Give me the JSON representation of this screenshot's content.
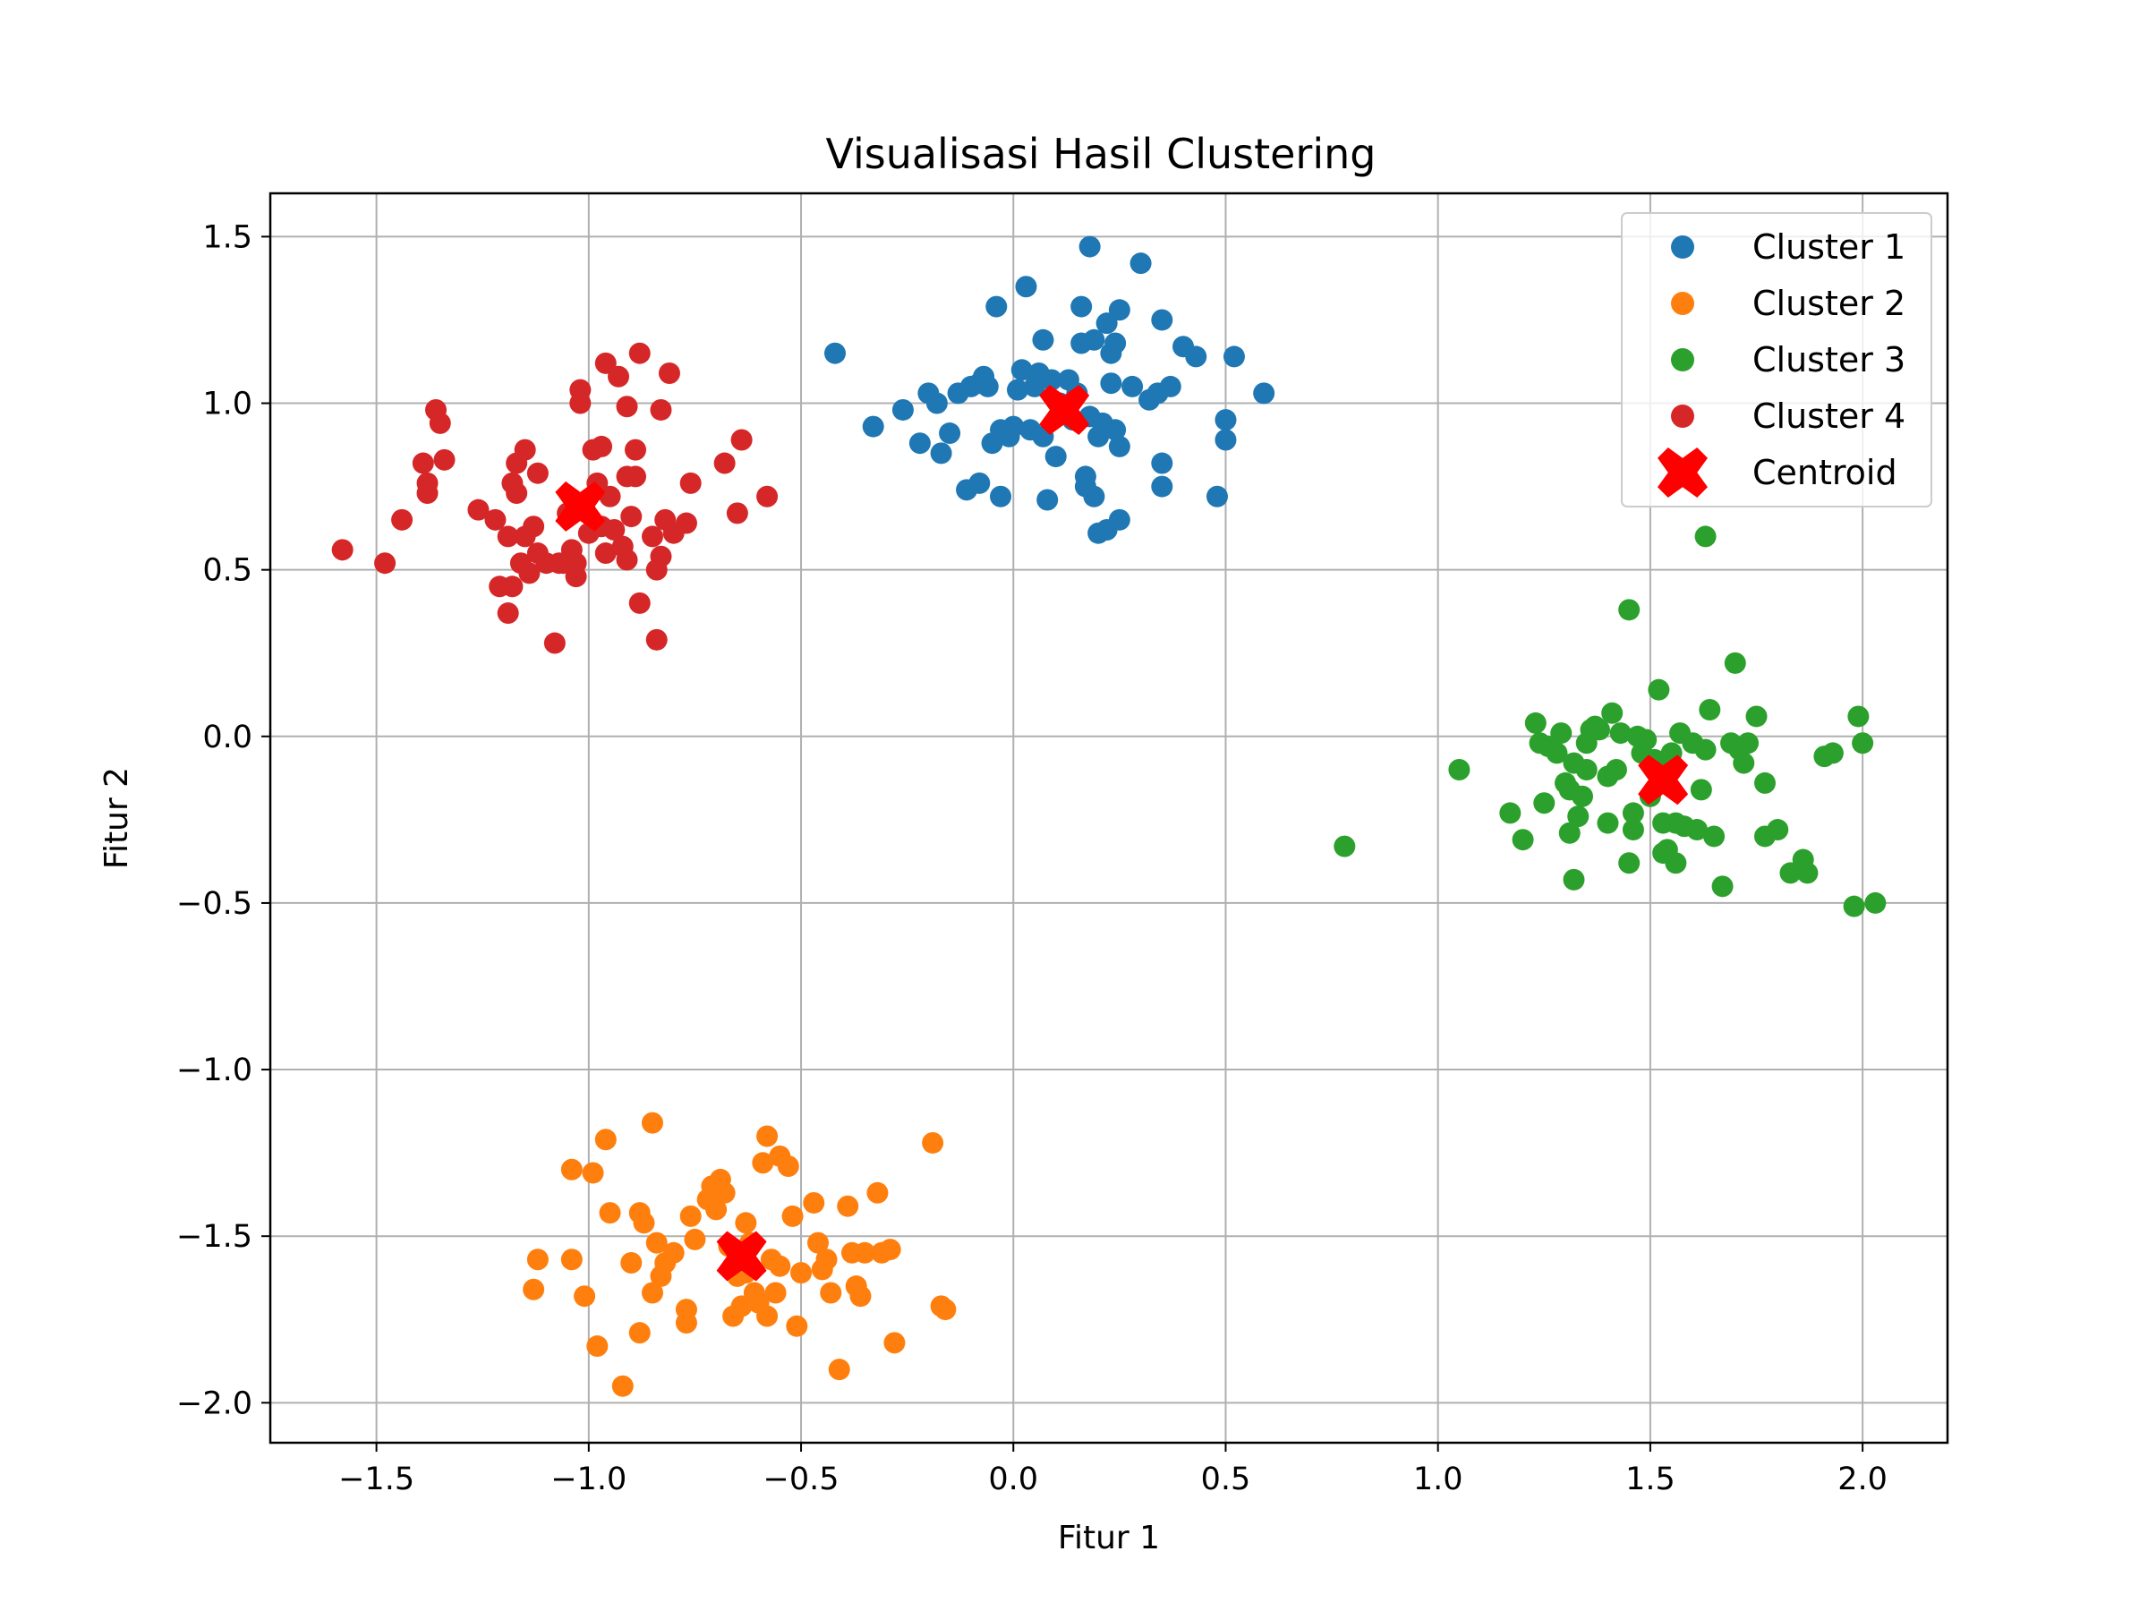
{
  "chart_data": {
    "type": "scatter",
    "title": "Visualisasi Hasil Clustering",
    "xlabel": "Fitur 1",
    "ylabel": "Fitur 2",
    "xlim": [
      -1.75,
      2.2
    ],
    "ylim": [
      -2.12,
      1.63
    ],
    "x_ticks": [
      -1.5,
      -1.0,
      -0.5,
      0.0,
      0.5,
      1.0,
      1.5,
      2.0
    ],
    "x_tick_labels": [
      "−1.5",
      "−1.0",
      "−0.5",
      "0.0",
      "0.5",
      "1.0",
      "1.5",
      "2.0"
    ],
    "y_ticks": [
      1.5,
      1.0,
      0.5,
      0.0,
      -0.5,
      -1.0,
      -1.5,
      -2.0
    ],
    "y_tick_labels": [
      "1.5",
      "1.0",
      "0.5",
      "0.0",
      "−0.5",
      "−1.0",
      "−1.5",
      "−2.0"
    ],
    "grid": true,
    "legend_position": "top-right",
    "series": [
      {
        "name": "Cluster 1",
        "color": "#1f77b4",
        "points": [
          [
            -0.42,
            1.15
          ],
          [
            -0.33,
            0.93
          ],
          [
            -0.26,
            0.98
          ],
          [
            -0.22,
            0.88
          ],
          [
            -0.2,
            1.03
          ],
          [
            -0.18,
            1.0
          ],
          [
            -0.17,
            0.85
          ],
          [
            -0.15,
            0.91
          ],
          [
            -0.13,
            1.03
          ],
          [
            -0.11,
            0.74
          ],
          [
            -0.1,
            1.05
          ],
          [
            -0.08,
            1.06
          ],
          [
            -0.08,
            0.76
          ],
          [
            -0.07,
            1.08
          ],
          [
            -0.06,
            1.05
          ],
          [
            -0.05,
            0.88
          ],
          [
            -0.04,
            1.29
          ],
          [
            -0.03,
            0.72
          ],
          [
            -0.03,
            0.92
          ],
          [
            -0.01,
            0.9
          ],
          [
            0.0,
            0.93
          ],
          [
            0.01,
            1.04
          ],
          [
            0.02,
            1.1
          ],
          [
            0.03,
            1.35
          ],
          [
            0.04,
            0.92
          ],
          [
            0.05,
            1.05
          ],
          [
            0.06,
            1.09
          ],
          [
            0.07,
            0.9
          ],
          [
            0.07,
            1.19
          ],
          [
            0.08,
            0.71
          ],
          [
            0.09,
            1.07
          ],
          [
            0.1,
            0.84
          ],
          [
            0.11,
            1.0
          ],
          [
            0.12,
            0.97
          ],
          [
            0.13,
            1.07
          ],
          [
            0.14,
            0.95
          ],
          [
            0.15,
            1.03
          ],
          [
            0.16,
            1.18
          ],
          [
            0.16,
            1.29
          ],
          [
            0.17,
            0.78
          ],
          [
            0.17,
            0.75
          ],
          [
            0.18,
            1.47
          ],
          [
            0.18,
            0.96
          ],
          [
            0.19,
            1.19
          ],
          [
            0.19,
            0.72
          ],
          [
            0.2,
            0.9
          ],
          [
            0.2,
            0.61
          ],
          [
            0.21,
            0.94
          ],
          [
            0.22,
            0.62
          ],
          [
            0.22,
            1.24
          ],
          [
            0.23,
            1.15
          ],
          [
            0.23,
            1.06
          ],
          [
            0.24,
            1.18
          ],
          [
            0.24,
            0.92
          ],
          [
            0.25,
            0.87
          ],
          [
            0.25,
            0.65
          ],
          [
            0.25,
            1.28
          ],
          [
            0.28,
            1.05
          ],
          [
            0.3,
            1.42
          ],
          [
            0.32,
            1.01
          ],
          [
            0.34,
            1.03
          ],
          [
            0.35,
            1.25
          ],
          [
            0.35,
            0.82
          ],
          [
            0.35,
            0.75
          ],
          [
            0.37,
            1.05
          ],
          [
            0.4,
            1.17
          ],
          [
            0.43,
            1.14
          ],
          [
            0.48,
            0.72
          ],
          [
            0.5,
            0.95
          ],
          [
            0.5,
            0.89
          ],
          [
            0.52,
            1.14
          ],
          [
            0.59,
            1.03
          ]
        ]
      },
      {
        "name": "Cluster 2",
        "color": "#ff7f0e",
        "points": [
          [
            -1.13,
            -1.66
          ],
          [
            -1.12,
            -1.57
          ],
          [
            -1.04,
            -1.3
          ],
          [
            -1.04,
            -1.57
          ],
          [
            -1.01,
            -1.68
          ],
          [
            -0.99,
            -1.31
          ],
          [
            -0.98,
            -1.83
          ],
          [
            -0.96,
            -1.21
          ],
          [
            -0.95,
            -1.43
          ],
          [
            -0.92,
            -1.95
          ],
          [
            -0.9,
            -1.58
          ],
          [
            -0.88,
            -1.79
          ],
          [
            -0.88,
            -1.43
          ],
          [
            -0.87,
            -1.46
          ],
          [
            -0.85,
            -1.16
          ],
          [
            -0.85,
            -1.67
          ],
          [
            -0.84,
            -1.52
          ],
          [
            -0.83,
            -1.62
          ],
          [
            -0.82,
            -1.58
          ],
          [
            -0.8,
            -1.55
          ],
          [
            -0.77,
            -1.72
          ],
          [
            -0.77,
            -1.76
          ],
          [
            -0.76,
            -1.44
          ],
          [
            -0.75,
            -1.51
          ],
          [
            -0.72,
            -1.39
          ],
          [
            -0.71,
            -1.35
          ],
          [
            -0.7,
            -1.42
          ],
          [
            -0.69,
            -1.33
          ],
          [
            -0.68,
            -1.37
          ],
          [
            -0.67,
            -1.53
          ],
          [
            -0.66,
            -1.74
          ],
          [
            -0.65,
            -1.62
          ],
          [
            -0.64,
            -1.71
          ],
          [
            -0.63,
            -1.46
          ],
          [
            -0.63,
            -1.61
          ],
          [
            -0.62,
            -1.52
          ],
          [
            -0.61,
            -1.67
          ],
          [
            -0.6,
            -1.7
          ],
          [
            -0.59,
            -1.28
          ],
          [
            -0.58,
            -1.2
          ],
          [
            -0.58,
            -1.74
          ],
          [
            -0.57,
            -1.57
          ],
          [
            -0.56,
            -1.67
          ],
          [
            -0.55,
            -1.59
          ],
          [
            -0.55,
            -1.26
          ],
          [
            -0.53,
            -1.29
          ],
          [
            -0.52,
            -1.44
          ],
          [
            -0.51,
            -1.77
          ],
          [
            -0.5,
            -1.61
          ],
          [
            -0.47,
            -1.4
          ],
          [
            -0.46,
            -1.52
          ],
          [
            -0.45,
            -1.6
          ],
          [
            -0.44,
            -1.57
          ],
          [
            -0.43,
            -1.67
          ],
          [
            -0.41,
            -1.9
          ],
          [
            -0.39,
            -1.41
          ],
          [
            -0.38,
            -1.55
          ],
          [
            -0.37,
            -1.65
          ],
          [
            -0.36,
            -1.68
          ],
          [
            -0.35,
            -1.55
          ],
          [
            -0.32,
            -1.37
          ],
          [
            -0.31,
            -1.55
          ],
          [
            -0.29,
            -1.54
          ],
          [
            -0.28,
            -1.82
          ],
          [
            -0.19,
            -1.22
          ],
          [
            -0.17,
            -1.71
          ],
          [
            -0.16,
            -1.72
          ]
        ]
      },
      {
        "name": "Cluster 3",
        "color": "#2ca02c",
        "points": [
          [
            0.78,
            -0.33
          ],
          [
            1.05,
            -0.1
          ],
          [
            1.17,
            -0.23
          ],
          [
            1.2,
            -0.31
          ],
          [
            1.23,
            0.04
          ],
          [
            1.24,
            -0.02
          ],
          [
            1.25,
            -0.2
          ],
          [
            1.26,
            -0.03
          ],
          [
            1.28,
            -0.05
          ],
          [
            1.29,
            0.01
          ],
          [
            1.3,
            -0.14
          ],
          [
            1.31,
            -0.29
          ],
          [
            1.31,
            -0.16
          ],
          [
            1.32,
            -0.43
          ],
          [
            1.32,
            -0.08
          ],
          [
            1.33,
            -0.24
          ],
          [
            1.34,
            -0.18
          ],
          [
            1.35,
            -0.02
          ],
          [
            1.35,
            -0.1
          ],
          [
            1.36,
            0.02
          ],
          [
            1.37,
            0.03
          ],
          [
            1.38,
            0.02
          ],
          [
            1.4,
            -0.26
          ],
          [
            1.4,
            -0.12
          ],
          [
            1.41,
            0.07
          ],
          [
            1.42,
            -0.1
          ],
          [
            1.43,
            0.01
          ],
          [
            1.45,
            0.38
          ],
          [
            1.45,
            -0.38
          ],
          [
            1.46,
            -0.28
          ],
          [
            1.46,
            -0.23
          ],
          [
            1.47,
            0.0
          ],
          [
            1.48,
            -0.05
          ],
          [
            1.49,
            -0.01
          ],
          [
            1.5,
            -0.18
          ],
          [
            1.51,
            -0.07
          ],
          [
            1.52,
            0.14
          ],
          [
            1.53,
            -0.26
          ],
          [
            1.53,
            -0.35
          ],
          [
            1.54,
            -0.34
          ],
          [
            1.55,
            -0.1
          ],
          [
            1.55,
            -0.05
          ],
          [
            1.56,
            -0.26
          ],
          [
            1.56,
            -0.38
          ],
          [
            1.57,
            0.01
          ],
          [
            1.58,
            -0.27
          ],
          [
            1.6,
            -0.02
          ],
          [
            1.61,
            -0.28
          ],
          [
            1.62,
            -0.16
          ],
          [
            1.63,
            0.6
          ],
          [
            1.63,
            -0.04
          ],
          [
            1.64,
            0.08
          ],
          [
            1.65,
            -0.3
          ],
          [
            1.67,
            -0.45
          ],
          [
            1.69,
            -0.02
          ],
          [
            1.7,
            0.22
          ],
          [
            1.71,
            -0.04
          ],
          [
            1.72,
            -0.08
          ],
          [
            1.73,
            -0.02
          ],
          [
            1.75,
            0.06
          ],
          [
            1.77,
            -0.14
          ],
          [
            1.77,
            -0.3
          ],
          [
            1.8,
            -0.28
          ],
          [
            1.83,
            -0.41
          ],
          [
            1.86,
            -0.37
          ],
          [
            1.87,
            -0.41
          ],
          [
            1.91,
            -0.06
          ],
          [
            1.93,
            -0.05
          ],
          [
            1.98,
            -0.51
          ],
          [
            1.99,
            0.06
          ],
          [
            2.0,
            -0.02
          ],
          [
            2.03,
            -0.5
          ]
        ]
      },
      {
        "name": "Cluster 4",
        "color": "#d62728",
        "points": [
          [
            -1.58,
            0.56
          ],
          [
            -1.48,
            0.52
          ],
          [
            -1.44,
            0.65
          ],
          [
            -1.39,
            0.82
          ],
          [
            -1.38,
            0.73
          ],
          [
            -1.38,
            0.76
          ],
          [
            -1.36,
            0.98
          ],
          [
            -1.35,
            0.94
          ],
          [
            -1.34,
            0.83
          ],
          [
            -1.26,
            0.68
          ],
          [
            -1.22,
            0.65
          ],
          [
            -1.21,
            0.45
          ],
          [
            -1.19,
            0.37
          ],
          [
            -1.19,
            0.6
          ],
          [
            -1.18,
            0.76
          ],
          [
            -1.18,
            0.45
          ],
          [
            -1.17,
            0.82
          ],
          [
            -1.17,
            0.73
          ],
          [
            -1.16,
            0.52
          ],
          [
            -1.15,
            0.6
          ],
          [
            -1.15,
            0.86
          ],
          [
            -1.14,
            0.49
          ],
          [
            -1.13,
            0.63
          ],
          [
            -1.12,
            0.79
          ],
          [
            -1.12,
            0.55
          ],
          [
            -1.1,
            0.52
          ],
          [
            -1.08,
            0.28
          ],
          [
            -1.07,
            0.52
          ],
          [
            -1.06,
            0.52
          ],
          [
            -1.05,
            0.67
          ],
          [
            -1.04,
            0.56
          ],
          [
            -1.03,
            0.52
          ],
          [
            -1.03,
            0.48
          ],
          [
            -1.02,
            1.0
          ],
          [
            -1.02,
            1.04
          ],
          [
            -1.01,
            0.69
          ],
          [
            -1.0,
            0.61
          ],
          [
            -0.99,
            0.86
          ],
          [
            -0.98,
            0.76
          ],
          [
            -0.97,
            0.63
          ],
          [
            -0.97,
            0.87
          ],
          [
            -0.96,
            0.55
          ],
          [
            -0.96,
            1.12
          ],
          [
            -0.95,
            0.72
          ],
          [
            -0.94,
            0.62
          ],
          [
            -0.93,
            1.08
          ],
          [
            -0.92,
            0.57
          ],
          [
            -0.91,
            0.53
          ],
          [
            -0.91,
            0.78
          ],
          [
            -0.91,
            0.99
          ],
          [
            -0.9,
            0.66
          ],
          [
            -0.89,
            0.86
          ],
          [
            -0.89,
            0.78
          ],
          [
            -0.88,
            1.15
          ],
          [
            -0.88,
            0.4
          ],
          [
            -0.85,
            0.6
          ],
          [
            -0.84,
            0.5
          ],
          [
            -0.84,
            0.29
          ],
          [
            -0.83,
            0.98
          ],
          [
            -0.83,
            0.54
          ],
          [
            -0.82,
            0.65
          ],
          [
            -0.81,
            1.09
          ],
          [
            -0.8,
            0.61
          ],
          [
            -0.77,
            0.64
          ],
          [
            -0.76,
            0.76
          ],
          [
            -0.68,
            0.82
          ],
          [
            -0.65,
            0.67
          ],
          [
            -0.64,
            0.89
          ],
          [
            -0.58,
            0.72
          ]
        ]
      }
    ],
    "centroids": {
      "name": "Centroid",
      "color": "#ff0000",
      "points": [
        [
          0.12,
          0.98
        ],
        [
          -0.64,
          -1.56
        ],
        [
          1.53,
          -0.13
        ],
        [
          -1.02,
          0.69
        ]
      ]
    }
  }
}
